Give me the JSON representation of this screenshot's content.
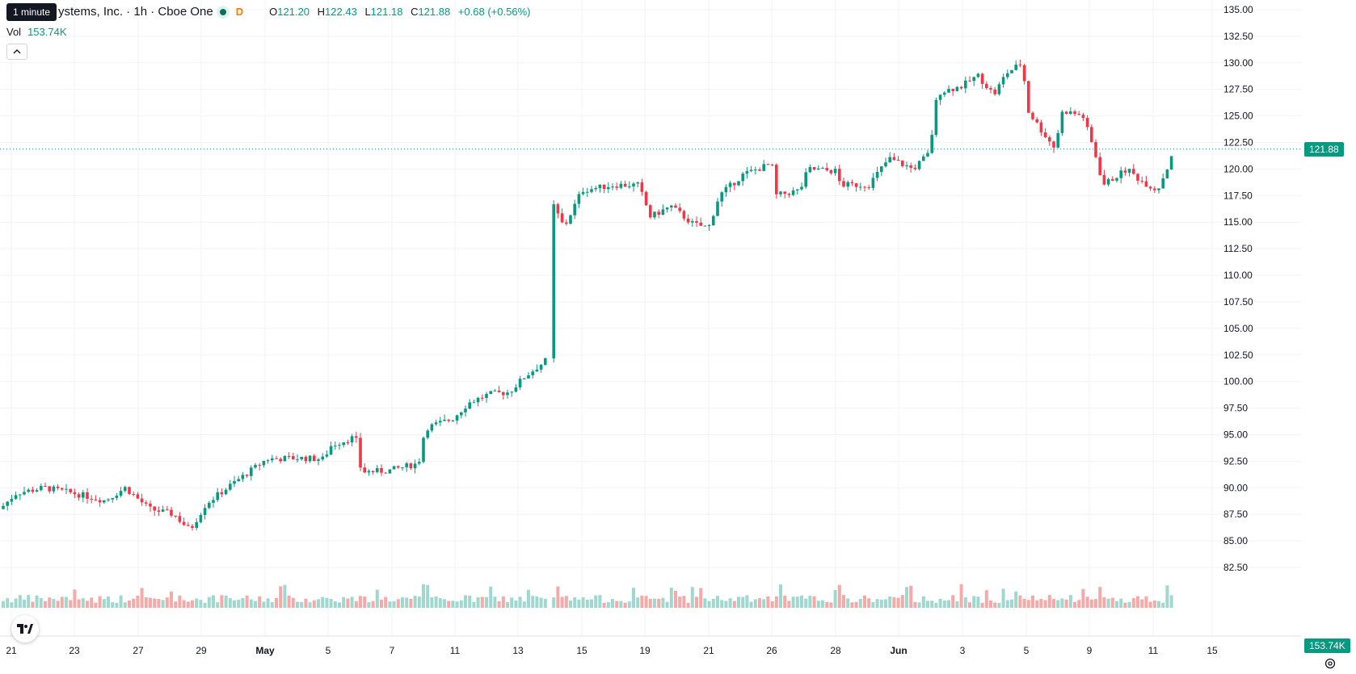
{
  "legend": {
    "title": "ystems, Inc. · 1h · Cboe One",
    "session": "D",
    "o_key": "O",
    "o": "121.20",
    "h_key": "H",
    "h": "122.43",
    "l_key": "L",
    "l": "121.18",
    "c_key": "C",
    "c": "121.88",
    "change": "+0.68 (+0.56%)"
  },
  "tooltip": "1 minute",
  "volume": {
    "label": "Vol",
    "value": "153.74K"
  },
  "price_tag": "121.88",
  "volume_tag": "153.74K",
  "colors": {
    "up": "#089981",
    "down": "#f23645",
    "up_vol": "#9fd8cf",
    "down_vol": "#f7a9a7",
    "grid": "#f0f3fa",
    "axis_text": "#131722"
  },
  "icons": [
    "tradingview-logo-icon",
    "settings-icon",
    "chevron-up-icon"
  ],
  "chart_data": {
    "type": "candlestick",
    "y_ticks": [
      "135.00",
      "132.50",
      "130.00",
      "127.50",
      "125.00",
      "122.50",
      "120.00",
      "117.50",
      "115.00",
      "112.50",
      "110.00",
      "107.50",
      "105.00",
      "102.50",
      "100.00",
      "97.50",
      "95.00",
      "92.50",
      "90.00",
      "87.50",
      "85.00",
      "82.50"
    ],
    "ylim": [
      82.5,
      135
    ],
    "last_price": 121.88,
    "x_ticks": [
      "21",
      "23",
      "27",
      "29",
      "May",
      "5",
      "7",
      "11",
      "13",
      "15",
      "19",
      "21",
      "26",
      "28",
      "Jun",
      "3",
      "5",
      "9",
      "11",
      "15"
    ],
    "anchors": [
      {
        "x": 0,
        "p": 88
      },
      {
        "x": 20,
        "p": 89.5
      },
      {
        "x": 55,
        "p": 90.0
      },
      {
        "x": 90,
        "p": 89.5
      },
      {
        "x": 130,
        "p": 88.8
      },
      {
        "x": 155,
        "p": 90.0
      },
      {
        "x": 185,
        "p": 88.0
      },
      {
        "x": 215,
        "p": 87.5
      },
      {
        "x": 235,
        "p": 86.0
      },
      {
        "x": 255,
        "p": 88.5
      },
      {
        "x": 290,
        "p": 90.5
      },
      {
        "x": 330,
        "p": 92.7
      },
      {
        "x": 370,
        "p": 92.8
      },
      {
        "x": 400,
        "p": 92.7
      },
      {
        "x": 410,
        "p": 94.0
      },
      {
        "x": 440,
        "p": 94.8
      },
      {
        "x": 447,
        "p": 91.5
      },
      {
        "x": 480,
        "p": 91.6
      },
      {
        "x": 518,
        "p": 92.3
      },
      {
        "x": 526,
        "p": 95.6
      },
      {
        "x": 560,
        "p": 96.5
      },
      {
        "x": 580,
        "p": 98.0
      },
      {
        "x": 605,
        "p": 98.8
      },
      {
        "x": 630,
        "p": 99.0
      },
      {
        "x": 650,
        "p": 100.5
      },
      {
        "x": 676,
        "p": 102.0
      },
      {
        "x": 682,
        "p": 117.0
      },
      {
        "x": 698,
        "p": 114.5
      },
      {
        "x": 720,
        "p": 118.0
      },
      {
        "x": 760,
        "p": 118.5
      },
      {
        "x": 790,
        "p": 118.5
      },
      {
        "x": 805,
        "p": 115.5
      },
      {
        "x": 830,
        "p": 116.5
      },
      {
        "x": 858,
        "p": 114.8
      },
      {
        "x": 877,
        "p": 114.5
      },
      {
        "x": 890,
        "p": 117.5
      },
      {
        "x": 920,
        "p": 119.5
      },
      {
        "x": 955,
        "p": 120.5
      },
      {
        "x": 960,
        "p": 117.5
      },
      {
        "x": 990,
        "p": 118.0
      },
      {
        "x": 1000,
        "p": 120.0
      },
      {
        "x": 1035,
        "p": 119.8
      },
      {
        "x": 1040,
        "p": 118.5
      },
      {
        "x": 1075,
        "p": 118.5
      },
      {
        "x": 1100,
        "p": 121.0
      },
      {
        "x": 1130,
        "p": 120.0
      },
      {
        "x": 1150,
        "p": 121.5
      },
      {
        "x": 1160,
        "p": 127.2
      },
      {
        "x": 1190,
        "p": 127.8
      },
      {
        "x": 1210,
        "p": 128.8
      },
      {
        "x": 1230,
        "p": 127.0
      },
      {
        "x": 1245,
        "p": 129.0
      },
      {
        "x": 1265,
        "p": 130.0
      },
      {
        "x": 1272,
        "p": 125.5
      },
      {
        "x": 1290,
        "p": 123.5
      },
      {
        "x": 1305,
        "p": 122.0
      },
      {
        "x": 1315,
        "p": 125.5
      },
      {
        "x": 1340,
        "p": 125.0
      },
      {
        "x": 1355,
        "p": 121.5
      },
      {
        "x": 1365,
        "p": 118.5
      },
      {
        "x": 1395,
        "p": 120.0
      },
      {
        "x": 1410,
        "p": 119.0
      },
      {
        "x": 1432,
        "p": 118.0
      },
      {
        "x": 1445,
        "p": 120.2
      },
      {
        "x": 1452,
        "p": 121.9
      }
    ],
    "volume_spike_x": 682
  }
}
